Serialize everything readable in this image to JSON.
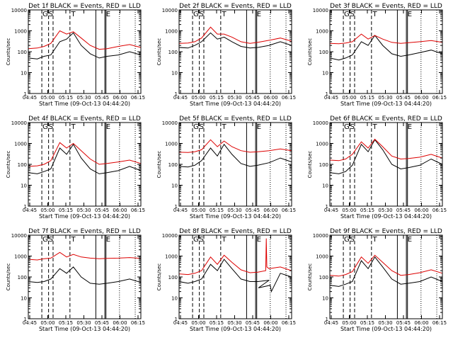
{
  "chart_data": [
    {
      "type": "line",
      "title": "Det 1f BLACK = Events, RED = LLD",
      "xlabel": "Start Time (09-Oct-13 04:44:20)",
      "ylabel": "Counts/sec",
      "xlim": [
        0,
        100
      ],
      "ylim": [
        1,
        10000
      ],
      "yscale": "log",
      "xticks": [
        "04:45",
        "05:00",
        "05:15",
        "05:30",
        "05:45",
        "06:00",
        "06:15"
      ],
      "yticks": [
        "1",
        "10",
        "100",
        "1000",
        "10000"
      ],
      "markers": {
        "letters": [
          "G",
          "S",
          "T",
          "E"
        ]
      },
      "series": [
        {
          "name": "BLACK = Events",
          "color": "#000000",
          "x": [
            0,
            8,
            14,
            20,
            28,
            34,
            40,
            47,
            55,
            63,
            70,
            80,
            90,
            100
          ],
          "values": [
            50,
            45,
            60,
            70,
            300,
            400,
            800,
            200,
            80,
            50,
            60,
            70,
            100,
            70
          ]
        },
        {
          "name": "RED = LLD",
          "color": "#dd0000",
          "x": [
            0,
            8,
            14,
            20,
            28,
            34,
            40,
            47,
            55,
            63,
            70,
            80,
            90,
            100
          ],
          "values": [
            140,
            150,
            180,
            250,
            1000,
            700,
            900,
            450,
            200,
            130,
            140,
            180,
            220,
            160
          ]
        }
      ]
    },
    {
      "type": "line",
      "title": "Det 2f BLACK = Events, RED = LLD",
      "xlabel": "Start Time (09-Oct-13 04:44:20)",
      "ylabel": "Counts/sec",
      "xlim": [
        0,
        100
      ],
      "ylim": [
        1,
        10000
      ],
      "yscale": "log",
      "xticks": [
        "04:45",
        "05:00",
        "05:15",
        "05:30",
        "05:45",
        "06:00",
        "06:15"
      ],
      "yticks": [
        "1",
        "10",
        "100",
        "1000",
        "10000"
      ],
      "markers": {
        "letters": [
          "G",
          "S",
          "T",
          "E"
        ]
      },
      "series": [
        {
          "name": "BLACK = Events",
          "color": "#000000",
          "x": [
            0,
            8,
            14,
            20,
            28,
            34,
            40,
            47,
            55,
            63,
            70,
            80,
            90,
            100
          ],
          "values": [
            160,
            150,
            200,
            300,
            800,
            400,
            500,
            300,
            180,
            150,
            160,
            200,
            300,
            200
          ]
        },
        {
          "name": "RED = LLD",
          "color": "#dd0000",
          "x": [
            0,
            8,
            14,
            20,
            28,
            34,
            40,
            47,
            55,
            63,
            70,
            80,
            90,
            100
          ],
          "values": [
            250,
            260,
            300,
            450,
            1500,
            700,
            700,
            500,
            300,
            250,
            280,
            350,
            450,
            320
          ]
        }
      ]
    },
    {
      "type": "line",
      "title": "Det 3f BLACK = Events, RED = LLD",
      "xlabel": "Start Time (09-Oct-13 04:44:20)",
      "ylabel": "Counts/sec",
      "xlim": [
        0,
        100
      ],
      "ylim": [
        1,
        10000
      ],
      "yscale": "log",
      "xticks": [
        "04:45",
        "05:00",
        "05:15",
        "05:30",
        "05:45",
        "06:00",
        "06:15"
      ],
      "yticks": [
        "1",
        "10",
        "100",
        "1000",
        "10000"
      ],
      "markers": {
        "letters": [
          "G",
          "S",
          "T",
          "E"
        ]
      },
      "series": [
        {
          "name": "BLACK = Events",
          "color": "#000000",
          "x": [
            0,
            8,
            14,
            20,
            28,
            34,
            40,
            47,
            55,
            63,
            70,
            80,
            90,
            100
          ],
          "values": [
            50,
            40,
            50,
            70,
            300,
            200,
            600,
            200,
            80,
            60,
            70,
            90,
            120,
            80
          ]
        },
        {
          "name": "RED = LLD",
          "color": "#dd0000",
          "x": [
            0,
            8,
            14,
            20,
            28,
            34,
            40,
            47,
            55,
            63,
            70,
            80,
            90,
            100
          ],
          "values": [
            250,
            240,
            260,
            300,
            700,
            400,
            600,
            400,
            280,
            250,
            270,
            300,
            340,
            280
          ]
        }
      ]
    },
    {
      "type": "line",
      "title": "Det 4f BLACK = Events, RED = LLD",
      "xlabel": "Start Time (09-Oct-13 04:44:20)",
      "ylabel": "Counts/sec",
      "xlim": [
        0,
        100
      ],
      "ylim": [
        1,
        10000
      ],
      "yscale": "log",
      "xticks": [
        "04:45",
        "05:00",
        "05:15",
        "05:30",
        "05:45",
        "06:00",
        "06:15"
      ],
      "yticks": [
        "1",
        "10",
        "100",
        "1000",
        "10000"
      ],
      "markers": {
        "letters": [
          "G",
          "S",
          "T",
          "E"
        ]
      },
      "series": [
        {
          "name": "BLACK = Events",
          "color": "#000000",
          "x": [
            0,
            8,
            14,
            20,
            28,
            34,
            40,
            47,
            55,
            63,
            70,
            80,
            90,
            100
          ],
          "values": [
            40,
            35,
            45,
            60,
            600,
            300,
            900,
            200,
            60,
            35,
            40,
            50,
            80,
            50
          ]
        },
        {
          "name": "RED = LLD",
          "color": "#dd0000",
          "x": [
            0,
            8,
            14,
            20,
            28,
            34,
            40,
            47,
            55,
            63,
            70,
            80,
            90,
            100
          ],
          "values": [
            80,
            85,
            100,
            150,
            1100,
            600,
            1000,
            450,
            180,
            100,
            110,
            130,
            160,
            110
          ]
        }
      ]
    },
    {
      "type": "line",
      "title": "Det 5f BLACK = Events, RED = LLD",
      "xlabel": "Start Time (09-Oct-13 04:44:20)",
      "ylabel": "Counts/sec",
      "xlim": [
        0,
        100
      ],
      "ylim": [
        1,
        10000
      ],
      "yscale": "log",
      "xticks": [
        "04:45",
        "05:00",
        "05:15",
        "05:30",
        "05:45",
        "06:00",
        "06:15"
      ],
      "yticks": [
        "1",
        "10",
        "100",
        "1000",
        "10000"
      ],
      "markers": {
        "letters": [
          "G",
          "S",
          "T",
          "E"
        ]
      },
      "series": [
        {
          "name": "BLACK = Events",
          "color": "#000000",
          "x": [
            0,
            8,
            14,
            20,
            28,
            34,
            40,
            47,
            55,
            63,
            70,
            80,
            90,
            100
          ],
          "values": [
            80,
            75,
            90,
            150,
            600,
            250,
            900,
            300,
            110,
            80,
            90,
            120,
            200,
            130
          ]
        },
        {
          "name": "RED = LLD",
          "color": "#dd0000",
          "x": [
            0,
            8,
            14,
            20,
            28,
            34,
            40,
            47,
            55,
            63,
            70,
            80,
            90,
            100
          ],
          "values": [
            380,
            370,
            400,
            500,
            1500,
            700,
            1300,
            700,
            450,
            380,
            400,
            450,
            550,
            450
          ]
        }
      ]
    },
    {
      "type": "line",
      "title": "Det 6f BLACK = Events, RED = LLD",
      "xlabel": "Start Time (09-Oct-13 04:44:20)",
      "ylabel": "Counts/sec",
      "xlim": [
        0,
        100
      ],
      "ylim": [
        1,
        10000
      ],
      "yscale": "log",
      "xticks": [
        "04:45",
        "05:00",
        "05:15",
        "05:30",
        "05:45",
        "06:00",
        "06:15"
      ],
      "yticks": [
        "1",
        "10",
        "100",
        "1000",
        "10000"
      ],
      "markers": {
        "letters": [
          "G",
          "S",
          "T",
          "E"
        ]
      },
      "series": [
        {
          "name": "BLACK = Events",
          "color": "#000000",
          "x": [
            0,
            8,
            14,
            20,
            28,
            34,
            40,
            47,
            55,
            63,
            70,
            80,
            90,
            100
          ],
          "values": [
            40,
            35,
            45,
            90,
            900,
            400,
            1500,
            500,
            100,
            60,
            70,
            90,
            180,
            100
          ]
        },
        {
          "name": "RED = LLD",
          "color": "#dd0000",
          "x": [
            0,
            8,
            14,
            20,
            28,
            34,
            40,
            47,
            55,
            63,
            70,
            80,
            90,
            100
          ],
          "values": [
            160,
            150,
            180,
            300,
            1200,
            600,
            1600,
            700,
            250,
            180,
            190,
            220,
            300,
            200
          ]
        }
      ]
    },
    {
      "type": "line",
      "title": "Det 7f BLACK = Events, RED = LLD",
      "xlabel": "Start Time (09-Oct-13 04:44:20)",
      "ylabel": "Counts/sec",
      "xlim": [
        0,
        100
      ],
      "ylim": [
        1,
        10000
      ],
      "yscale": "log",
      "xticks": [
        "04:45",
        "05:00",
        "05:15",
        "05:30",
        "05:45",
        "06:00",
        "06:15"
      ],
      "yticks": [
        "1",
        "10",
        "100",
        "1000",
        "10000"
      ],
      "markers": {
        "letters": [
          "G",
          "S",
          "T",
          "E"
        ]
      },
      "series": [
        {
          "name": "BLACK = Events",
          "color": "#000000",
          "x": [
            0,
            8,
            14,
            20,
            28,
            34,
            40,
            47,
            55,
            63,
            70,
            80,
            90,
            100
          ],
          "values": [
            60,
            55,
            60,
            80,
            250,
            150,
            300,
            100,
            50,
            45,
            50,
            60,
            80,
            55
          ]
        },
        {
          "name": "RED = LLD",
          "color": "#dd0000",
          "x": [
            0,
            8,
            14,
            20,
            28,
            34,
            40,
            47,
            55,
            63,
            70,
            80,
            90,
            100
          ],
          "values": [
            700,
            650,
            750,
            800,
            1500,
            900,
            1200,
            900,
            800,
            750,
            780,
            800,
            850,
            780
          ]
        }
      ]
    },
    {
      "type": "line",
      "title": "Det 8f BLACK = Events, RED = LLD",
      "xlabel": "Start Time (09-Oct-13 04:44:20)",
      "ylabel": "Counts/sec",
      "xlim": [
        0,
        100
      ],
      "ylim": [
        1,
        10000
      ],
      "yscale": "log",
      "xticks": [
        "04:45",
        "05:00",
        "05:15",
        "05:30",
        "05:45",
        "06:00",
        "06:15"
      ],
      "yticks": [
        "1",
        "10",
        "100",
        "1000",
        "10000"
      ],
      "markers": {
        "letters": [
          "G",
          "S",
          "T",
          "E"
        ]
      },
      "series": [
        {
          "name": "BLACK = Events",
          "color": "#000000",
          "x": [
            0,
            8,
            14,
            20,
            28,
            34,
            40,
            47,
            55,
            63,
            70,
            80,
            70.5,
            81,
            82,
            90,
            100
          ],
          "values": [
            60,
            50,
            60,
            80,
            400,
            200,
            700,
            250,
            80,
            60,
            60,
            70,
            30,
            40,
            20,
            150,
            100
          ]
        },
        {
          "name": "RED = LLD",
          "color": "#dd0000",
          "x": [
            0,
            8,
            14,
            20,
            28,
            34,
            40,
            47,
            55,
            63,
            70,
            77,
            77.5,
            78,
            80,
            90,
            100
          ],
          "values": [
            140,
            130,
            150,
            200,
            900,
            400,
            1100,
            500,
            220,
            160,
            170,
            200,
            7000,
            300,
            250,
            300,
            200
          ]
        }
      ]
    },
    {
      "type": "line",
      "title": "Det 9f BLACK = Events, RED = LLD",
      "xlabel": "Start Time (09-Oct-13 04:44:20)",
      "ylabel": "Counts/sec",
      "xlim": [
        0,
        100
      ],
      "ylim": [
        1,
        10000
      ],
      "yscale": "log",
      "xticks": [
        "04:45",
        "05:00",
        "05:15",
        "05:30",
        "05:45",
        "06:00",
        "06:15"
      ],
      "yticks": [
        "1",
        "10",
        "100",
        "1000",
        "10000"
      ],
      "markers": {
        "letters": [
          "G",
          "S",
          "T",
          "E"
        ]
      },
      "series": [
        {
          "name": "BLACK = Events",
          "color": "#000000",
          "x": [
            0,
            8,
            14,
            20,
            28,
            34,
            40,
            47,
            55,
            63,
            70,
            80,
            90,
            100
          ],
          "values": [
            40,
            35,
            45,
            60,
            600,
            250,
            900,
            300,
            80,
            45,
            50,
            60,
            100,
            60
          ]
        },
        {
          "name": "RED = LLD",
          "color": "#dd0000",
          "x": [
            0,
            8,
            14,
            20,
            28,
            34,
            40,
            47,
            55,
            63,
            70,
            80,
            90,
            100
          ],
          "values": [
            120,
            110,
            130,
            180,
            900,
            450,
            1100,
            500,
            200,
            120,
            130,
            160,
            220,
            150
          ]
        }
      ]
    }
  ]
}
